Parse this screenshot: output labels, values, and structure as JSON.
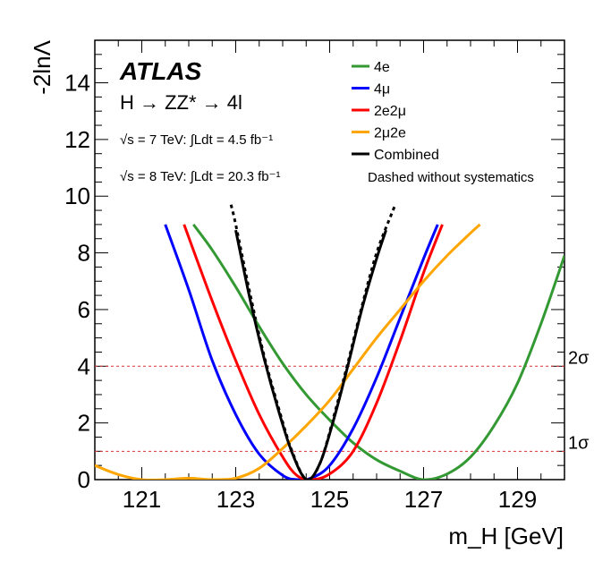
{
  "chart_data": {
    "type": "line",
    "title": "",
    "experiment_label": "ATLAS",
    "annotations": {
      "process": "H → ZZ* → 4l",
      "sqrt_s_7": "√s = 7 TeV: ∫Ldt = 4.5 fb⁻¹",
      "sqrt_s_8": "√s = 8 TeV: ∫Ldt = 20.3 fb⁻¹",
      "dashed_note": "Dashed without systematics"
    },
    "xlabel": "m_H [GeV]",
    "ylabel": "-2lnΛ",
    "xlim": [
      120,
      130
    ],
    "ylim": [
      0,
      15.5
    ],
    "x_ticks": [
      121,
      123,
      125,
      127,
      129
    ],
    "y_ticks": [
      0,
      2,
      4,
      6,
      8,
      10,
      12,
      14
    ],
    "reference_lines": [
      {
        "label": "1σ",
        "y": 1,
        "color": "#dd3333"
      },
      {
        "label": "2σ",
        "y": 4,
        "color": "#dd3333"
      }
    ],
    "series": [
      {
        "name": "4e",
        "color": "#339933",
        "dashed": false,
        "x": [
          122.1,
          122.5,
          123.0,
          123.5,
          124.0,
          124.5,
          125.0,
          125.5,
          126.0,
          126.5,
          127.0,
          127.5,
          128.0,
          128.5,
          129.0,
          129.5,
          130.0
        ],
        "y": [
          9.0,
          8.1,
          6.8,
          5.4,
          4.1,
          3.0,
          2.1,
          1.3,
          0.7,
          0.3,
          0.0,
          0.2,
          0.8,
          1.9,
          3.4,
          5.5,
          7.9
        ]
      },
      {
        "name": "4μ",
        "color": "#0000ff",
        "dashed": false,
        "x": [
          121.5,
          122.0,
          122.5,
          123.0,
          123.5,
          124.0,
          124.3,
          124.6,
          125.0,
          125.5,
          126.0,
          126.5,
          127.0,
          127.3
        ],
        "y": [
          9.0,
          6.7,
          4.2,
          2.3,
          0.9,
          0.15,
          0.0,
          0.05,
          0.5,
          1.8,
          3.6,
          5.7,
          7.8,
          9.0
        ]
      },
      {
        "name": "2e2μ",
        "color": "#ff0000",
        "dashed": false,
        "x": [
          121.9,
          122.5,
          123.0,
          123.5,
          124.0,
          124.3,
          124.6,
          125.0,
          125.5,
          126.0,
          126.5,
          127.0,
          127.4
        ],
        "y": [
          9.0,
          6.3,
          4.2,
          2.3,
          0.8,
          0.15,
          0.0,
          0.2,
          1.0,
          2.7,
          4.9,
          7.3,
          9.0
        ]
      },
      {
        "name": "2μ2e",
        "color": "#ffa500",
        "dashed": false,
        "x": [
          120.0,
          120.5,
          121.0,
          121.5,
          122.0,
          122.5,
          123.0,
          123.5,
          124.0,
          124.5,
          125.0,
          125.5,
          126.0,
          126.5,
          127.0,
          127.5,
          128.0,
          128.2
        ],
        "y": [
          0.5,
          0.18,
          0.0,
          0.0,
          0.05,
          0.0,
          0.05,
          0.4,
          1.1,
          1.9,
          2.8,
          3.9,
          5.0,
          6.0,
          7.0,
          7.9,
          8.7,
          9.0
        ]
      },
      {
        "name": "Combined",
        "color": "#000000",
        "dashed": false,
        "x": [
          123.0,
          123.3,
          123.6,
          123.9,
          124.2,
          124.51,
          124.8,
          125.1,
          125.4,
          125.7,
          126.0,
          126.2
        ],
        "y": [
          8.8,
          6.4,
          4.3,
          2.5,
          0.95,
          0.0,
          0.6,
          2.2,
          4.1,
          6.1,
          7.8,
          8.8
        ]
      },
      {
        "name": "Combined (without systematics)",
        "color": "#000000",
        "dashed": true,
        "x": [
          122.9,
          123.0,
          123.3,
          123.6,
          123.9,
          124.2,
          124.51,
          124.8,
          125.1,
          125.4,
          125.7,
          126.0,
          126.3,
          126.4
        ],
        "y": [
          9.7,
          9.0,
          6.6,
          4.4,
          2.6,
          1.0,
          0.0,
          0.6,
          2.3,
          4.2,
          6.2,
          8.0,
          9.3,
          9.7
        ]
      }
    ]
  }
}
